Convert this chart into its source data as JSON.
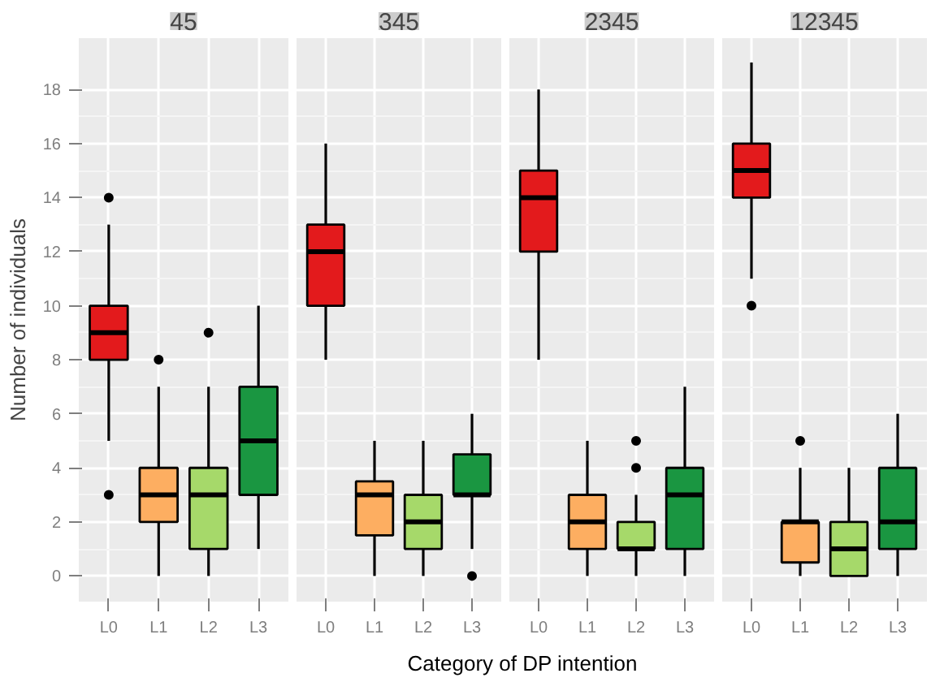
{
  "chart_data": [
    {
      "type": "box",
      "title": "45",
      "ylabel": "Number of individuals",
      "xlabel": "Category of DP intention",
      "categories": [
        "L0",
        "L1",
        "L2",
        "L3"
      ],
      "colors": [
        "#e31a1c",
        "#fdae61",
        "#a6d96a",
        "#1a9641"
      ],
      "ylim": [
        -0.95,
        19.9
      ],
      "yticks": [
        0,
        2,
        4,
        6,
        8,
        10,
        12,
        14,
        16,
        18
      ],
      "grid": true,
      "boxes": [
        {
          "low": 5,
          "q1": 8,
          "median": 9,
          "q3": 10,
          "high": 13,
          "outliers": [
            14,
            3
          ]
        },
        {
          "low": 0,
          "q1": 2,
          "median": 3,
          "q3": 4,
          "high": 7,
          "outliers": [
            8
          ]
        },
        {
          "low": 0,
          "q1": 1,
          "median": 3,
          "q3": 4,
          "high": 7,
          "outliers": [
            9
          ]
        },
        {
          "low": 1,
          "q1": 3,
          "median": 5,
          "q3": 7,
          "high": 10
        }
      ]
    },
    {
      "type": "box",
      "title": "345",
      "categories": [
        "L0",
        "L1",
        "L2",
        "L3"
      ],
      "colors": [
        "#e31a1c",
        "#fdae61",
        "#a6d96a",
        "#1a9641"
      ],
      "ylim": [
        -0.95,
        19.9
      ],
      "yticks": [
        0,
        2,
        4,
        6,
        8,
        10,
        12,
        14,
        16,
        18
      ],
      "grid": true,
      "tick_labels": "x",
      "boxes": [
        {
          "low": 8,
          "q1": 10,
          "median": 12,
          "q3": 13,
          "high": 16
        },
        {
          "low": 0,
          "q1": 1.5,
          "median": 3,
          "q3": 3.5,
          "high": 5
        },
        {
          "low": 0,
          "q1": 1,
          "median": 2,
          "q3": 3,
          "high": 5
        },
        {
          "low": 1,
          "q1": 3,
          "median": 3,
          "q3": 4.5,
          "high": 6,
          "outliers": [
            0
          ]
        }
      ]
    },
    {
      "type": "box",
      "title": "2345",
      "categories": [
        "L0",
        "L1",
        "L2",
        "L3"
      ],
      "colors": [
        "#e31a1c",
        "#fdae61",
        "#a6d96a",
        "#1a9641"
      ],
      "ylim": [
        -0.95,
        19.9
      ],
      "yticks": [
        0,
        2,
        4,
        6,
        8,
        10,
        12,
        14,
        16,
        18
      ],
      "grid": true,
      "tick_labels": "x",
      "boxes": [
        {
          "low": 8,
          "q1": 12,
          "median": 14,
          "q3": 15,
          "high": 18
        },
        {
          "low": 0,
          "q1": 1,
          "median": 2,
          "q3": 3,
          "high": 5
        },
        {
          "low": 0,
          "q1": 1,
          "median": 1,
          "q3": 2,
          "high": 3,
          "outliers": [
            4,
            5
          ]
        },
        {
          "low": 0,
          "q1": 1,
          "median": 3,
          "q3": 4,
          "high": 7
        }
      ]
    },
    {
      "type": "box",
      "title": "12345",
      "categories": [
        "L0",
        "L1",
        "L2",
        "L3"
      ],
      "colors": [
        "#e31a1c",
        "#fdae61",
        "#a6d96a",
        "#1a9641"
      ],
      "ylim": [
        -0.95,
        19.9
      ],
      "yticks": [
        0,
        2,
        4,
        6,
        8,
        10,
        12,
        14,
        16,
        18
      ],
      "grid": true,
      "tick_labels": "x",
      "boxes": [
        {
          "low": 11,
          "q1": 14,
          "median": 15,
          "q3": 16,
          "high": 19,
          "outliers": [
            10
          ]
        },
        {
          "low": 0,
          "q1": 0.5,
          "median": 2,
          "q3": 2,
          "high": 4,
          "outliers": [
            5
          ]
        },
        {
          "low": 0,
          "q1": 0,
          "median": 1,
          "q3": 2,
          "high": 4
        },
        {
          "low": 0,
          "q1": 1,
          "median": 2,
          "q3": 4,
          "high": 6
        }
      ]
    }
  ]
}
